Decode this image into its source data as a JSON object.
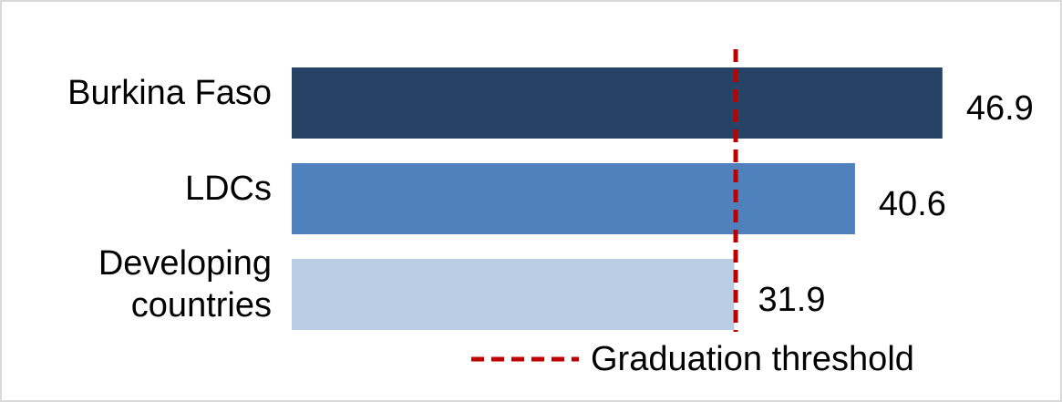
{
  "chart_data": {
    "type": "bar",
    "orientation": "horizontal",
    "categories": [
      "Burkina Faso",
      "LDCs",
      "Developing countries"
    ],
    "values": [
      46.9,
      40.6,
      31.9
    ],
    "colors": [
      "#264264",
      "#4f81bd",
      "#b9cde5"
    ],
    "xlim": [
      0,
      50
    ],
    "threshold": {
      "value": 32,
      "label": "Graduation threshold",
      "color": "#c00000"
    }
  }
}
